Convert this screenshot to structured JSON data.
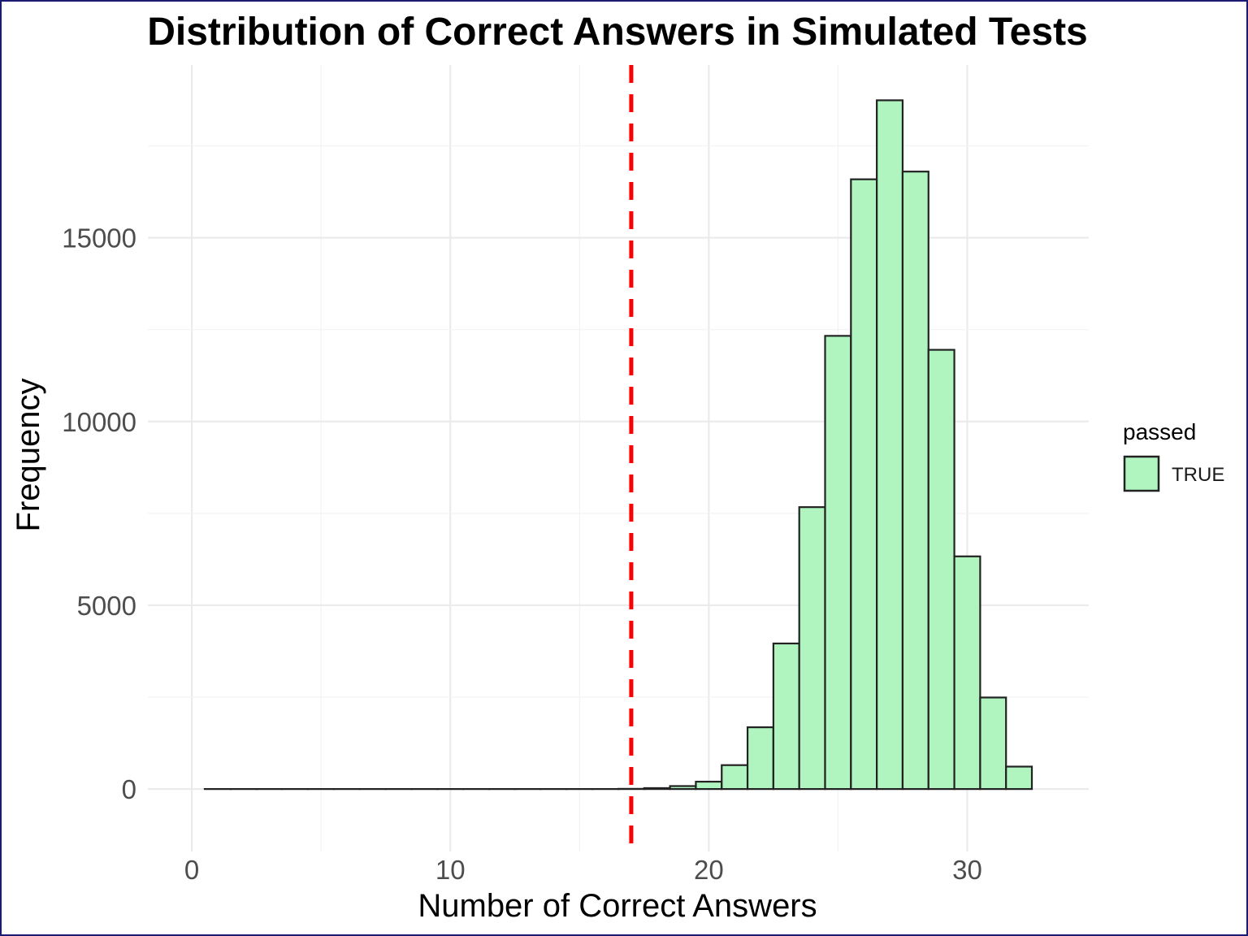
{
  "chart_data": {
    "type": "bar",
    "title": "Distribution of Correct Answers in Simulated Tests",
    "xlabel": "Number of Correct Answers",
    "ylabel": "Frequency",
    "bin_width": 1,
    "bins": [
      {
        "x": 1,
        "count": 0
      },
      {
        "x": 2,
        "count": 0
      },
      {
        "x": 3,
        "count": 0
      },
      {
        "x": 4,
        "count": 0
      },
      {
        "x": 5,
        "count": 0
      },
      {
        "x": 6,
        "count": 0
      },
      {
        "x": 7,
        "count": 0
      },
      {
        "x": 8,
        "count": 0
      },
      {
        "x": 9,
        "count": 0
      },
      {
        "x": 10,
        "count": 0
      },
      {
        "x": 11,
        "count": 0
      },
      {
        "x": 12,
        "count": 0
      },
      {
        "x": 13,
        "count": 0
      },
      {
        "x": 14,
        "count": 0
      },
      {
        "x": 15,
        "count": 0
      },
      {
        "x": 16,
        "count": 0
      },
      {
        "x": 17,
        "count": 5
      },
      {
        "x": 18,
        "count": 25
      },
      {
        "x": 19,
        "count": 80
      },
      {
        "x": 20,
        "count": 200
      },
      {
        "x": 21,
        "count": 650
      },
      {
        "x": 22,
        "count": 1680
      },
      {
        "x": 23,
        "count": 3960
      },
      {
        "x": 24,
        "count": 7670
      },
      {
        "x": 25,
        "count": 12330
      },
      {
        "x": 26,
        "count": 16590
      },
      {
        "x": 27,
        "count": 18740
      },
      {
        "x": 28,
        "count": 16800
      },
      {
        "x": 29,
        "count": 11950
      },
      {
        "x": 30,
        "count": 6330
      },
      {
        "x": 31,
        "count": 2490
      },
      {
        "x": 32,
        "count": 610
      }
    ],
    "x_ticks": [
      0,
      10,
      20,
      30
    ],
    "y_ticks": [
      0,
      5000,
      10000,
      15000
    ],
    "xlim": [
      -1.7,
      34.7
    ],
    "ylim": [
      -1700,
      19700
    ],
    "threshold_line": {
      "x": 17,
      "color": "#ff0000",
      "style": "dashed"
    },
    "fill_color": "#b0f5c0",
    "edge_color": "#222222",
    "grid": true,
    "legend": {
      "title": "passed",
      "entries": [
        {
          "label": "TRUE",
          "color": "#b0f5c0"
        }
      ],
      "position": "right"
    }
  }
}
